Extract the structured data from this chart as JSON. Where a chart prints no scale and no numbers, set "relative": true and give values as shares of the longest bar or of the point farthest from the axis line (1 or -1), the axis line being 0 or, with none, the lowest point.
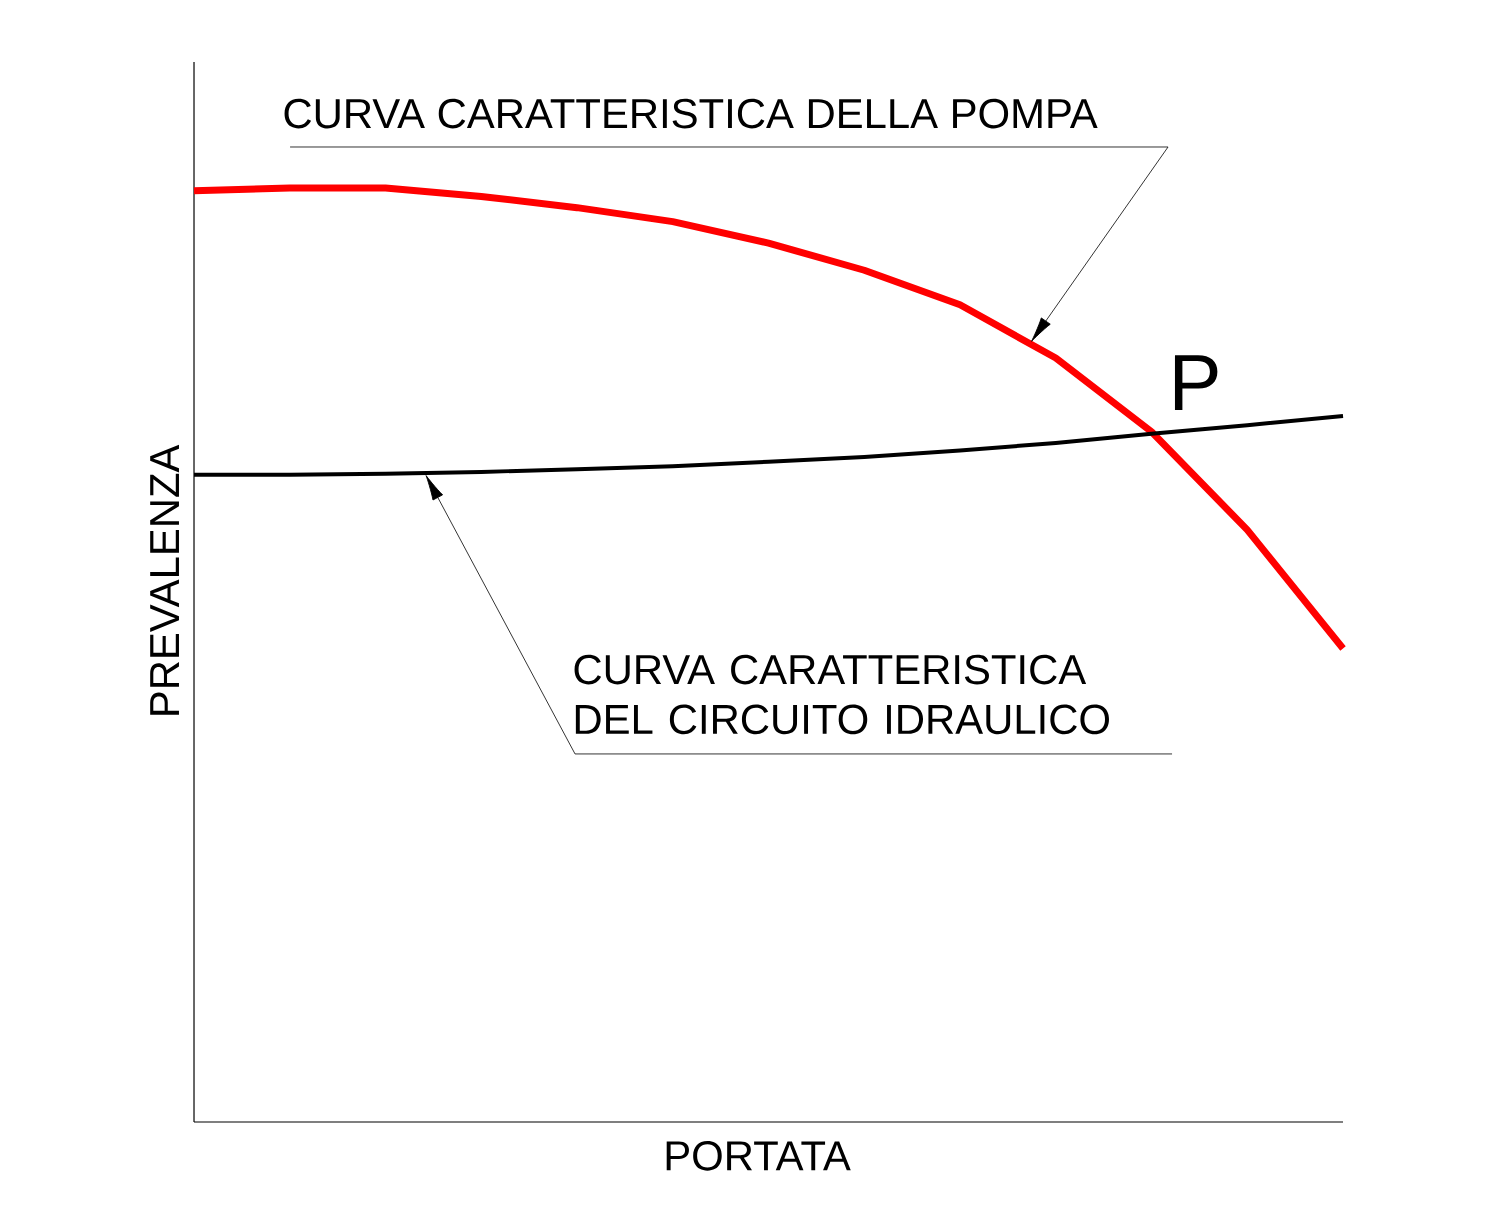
{
  "chart_data": {
    "type": "line",
    "relative": true,
    "xlabel": "PORTATA",
    "ylabel": "PREVALENZA",
    "categories": [
      null,
      null,
      null,
      null,
      null,
      null,
      null,
      null,
      null,
      null,
      null,
      null,
      null
    ],
    "series": [
      {
        "color": "#ff0000",
        "values": [
          0.997,
          1,
          1,
          0.991,
          0.979,
          0.964,
          0.941,
          0.912,
          0.875,
          0.818,
          0.739,
          0.634,
          0.507
        ]
      },
      {
        "color": "#000000",
        "values": [
          0.693,
          0.693,
          0.694,
          0.696,
          0.699,
          0.702,
          0.707,
          0.712,
          0.719,
          0.727,
          0.737,
          0.746,
          0.756
        ]
      }
    ],
    "annotations": [
      "CURVA CARATTERISTICA DELLA POMPA",
      "CURVA CARATTERISTICA DEL CIRCUITO IDRAULICO",
      "P"
    ]
  }
}
